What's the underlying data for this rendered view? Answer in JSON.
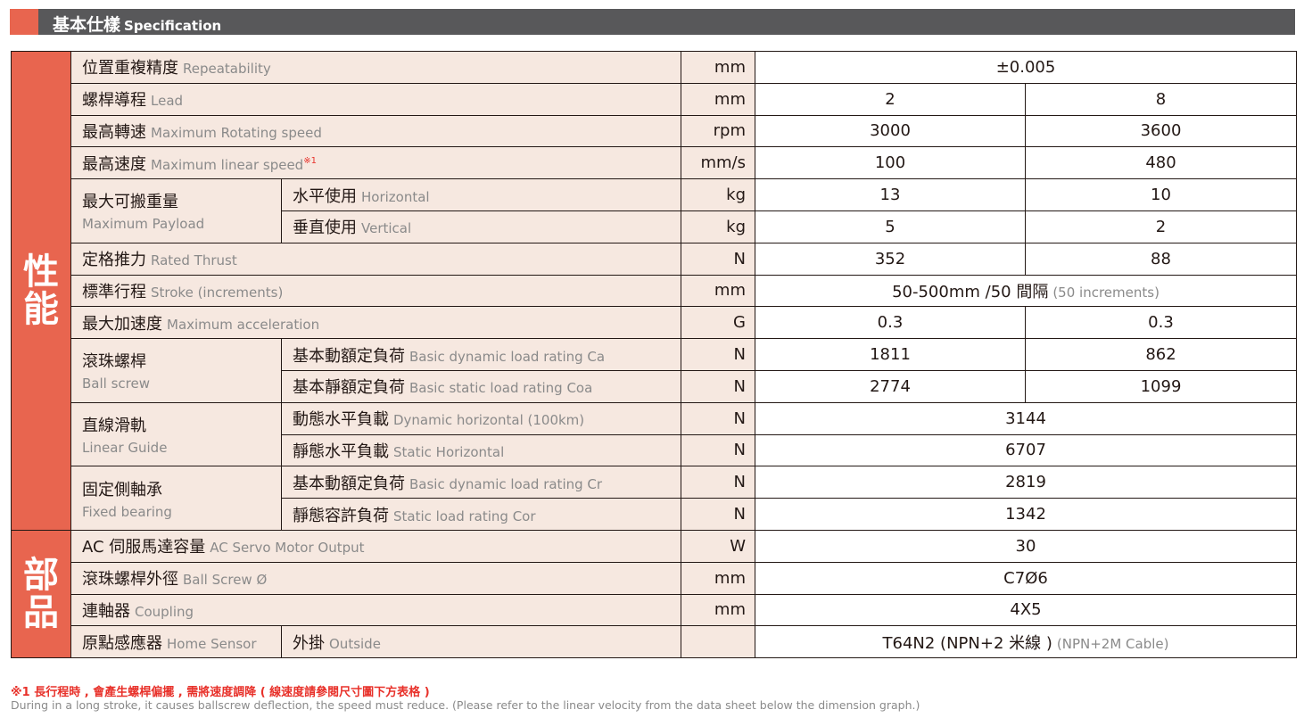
{
  "header": {
    "title_zh": "基本仕樣",
    "title_en": "Specification"
  },
  "groups": {
    "performance": "性能",
    "parts": "部品"
  },
  "rows": [
    {
      "zh": "位置重複精度",
      "en": "Repeatability",
      "unit": "mm",
      "values": [
        "±0.005"
      ]
    },
    {
      "zh": "螺桿導程",
      "en": "Lead",
      "unit": "mm",
      "values": [
        "2",
        "8"
      ]
    },
    {
      "zh": "最高轉速",
      "en": "Maximum Rotating speed",
      "unit": "rpm",
      "values": [
        "3000",
        "3600"
      ]
    },
    {
      "zh": "最高速度",
      "en": "Maximum linear speed",
      "note": "※1",
      "unit": "mm/s",
      "values": [
        "100",
        "480"
      ]
    },
    {
      "parent_zh": "最大可搬重量",
      "parent_en": "Maximum Payload",
      "zh": "水平使用",
      "en": "Horizontal",
      "unit": "kg",
      "values": [
        "13",
        "10"
      ]
    },
    {
      "zh": "垂直使用",
      "en": "Vertical",
      "unit": "kg",
      "values": [
        "5",
        "2"
      ]
    },
    {
      "zh": "定格推力",
      "en": "Rated Thrust",
      "unit": "N",
      "values": [
        "352",
        "88"
      ]
    },
    {
      "zh": "標準行程",
      "en": "Stroke (increments)",
      "unit": "mm",
      "values": [
        "50-500mm /50 間隔"
      ],
      "value_en": "(50 increments)"
    },
    {
      "zh": "最大加速度",
      "en": "Maximum acceleration",
      "unit": "G",
      "values": [
        "0.3",
        "0.3"
      ]
    },
    {
      "parent_zh": "滾珠螺桿",
      "parent_en": "Ball screw",
      "zh": "基本動額定負荷",
      "en": "Basic dynamic load rating Ca",
      "unit": "N",
      "values": [
        "1811",
        "862"
      ]
    },
    {
      "zh": "基本靜額定負荷",
      "en": "Basic static load rating Coa",
      "unit": "N",
      "values": [
        "2774",
        "1099"
      ]
    },
    {
      "parent_zh": "直線滑軌",
      "parent_en": "Linear Guide",
      "zh": "動態水平負載",
      "en": "Dynamic horizontal (100km)",
      "unit": "N",
      "values": [
        "3144"
      ]
    },
    {
      "zh": "靜態水平負載",
      "en": "Static Horizontal",
      "unit": "N",
      "values": [
        "6707"
      ]
    },
    {
      "parent_zh": "固定側軸承",
      "parent_en": "Fixed bearing",
      "zh": "基本動額定負荷",
      "en": "Basic dynamic load rating Cr",
      "unit": "N",
      "values": [
        "2819"
      ]
    },
    {
      "zh": "靜態容許負荷",
      "en": "Static load rating Cor",
      "unit": "N",
      "values": [
        "1342"
      ]
    },
    {
      "zh": "AC 伺服馬達容量",
      "en": "AC Servo Motor Output",
      "unit": "W",
      "values": [
        "30"
      ]
    },
    {
      "zh": "滾珠螺桿外徑",
      "en": "Ball Screw Ø",
      "unit": "mm",
      "values": [
        "C7Ø6"
      ]
    },
    {
      "zh": "連軸器",
      "en": "Coupling",
      "unit": "mm",
      "values": [
        "4X5"
      ]
    },
    {
      "side_zh": "原點感應器",
      "side_en": "Home Sensor",
      "zh": "外掛",
      "en": "Outside",
      "unit": "",
      "values": [
        "T64N2 (NPN+2 米線 )"
      ],
      "value_en": "(NPN+2M Cable)"
    }
  ],
  "notes": {
    "zh": "※1 長行程時 , 會產生螺桿偏擺 , 需將速度調降 ( 線速度請參閱尺寸圖下方表格 )",
    "en": "During in a long stroke, it causes ballscrew deflection, the speed must reduce. (Please refer to the linear velocity from the data sheet below the dimension graph.)"
  },
  "colors": {
    "accent": "#e8654f",
    "header_bg": "#58585a",
    "label_bg": "#f6e8e0",
    "note": "#e8312a"
  }
}
